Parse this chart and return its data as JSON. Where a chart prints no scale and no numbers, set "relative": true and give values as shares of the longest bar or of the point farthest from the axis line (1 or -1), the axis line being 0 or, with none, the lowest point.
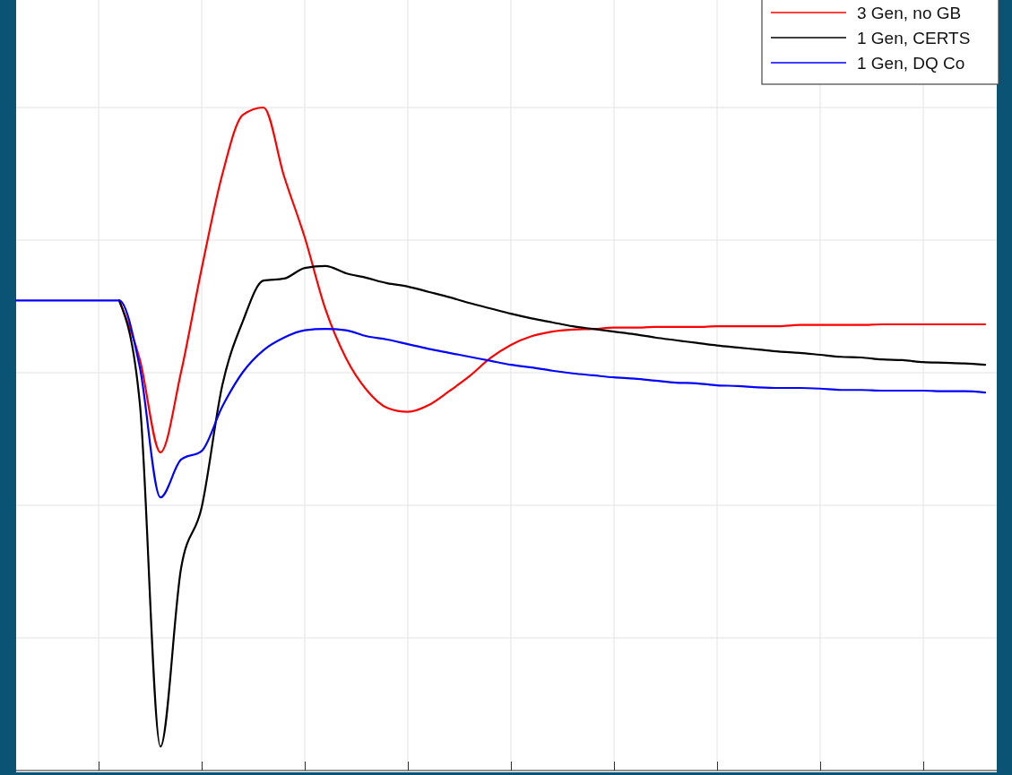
{
  "chart_data": {
    "type": "line",
    "relative": true,
    "grid": true,
    "legend": "top right",
    "categories": [
      null,
      null,
      null,
      null,
      null,
      null,
      null,
      null,
      null,
      null,
      null,
      null,
      null,
      null,
      null,
      null,
      null,
      null,
      null,
      null,
      null,
      null,
      null,
      null,
      null,
      null,
      null,
      null,
      null,
      null,
      null,
      null,
      null,
      null,
      null,
      null,
      null,
      null,
      null,
      null,
      null,
      null,
      null,
      null,
      null,
      null,
      null,
      null
    ],
    "series": [
      {
        "name": "3 Gen, no GB",
        "color": "#ff0000",
        "values": [
          null,
          null,
          null,
          null,
          null,
          0.709,
          0.62,
          0.48,
          0.601,
          0.757,
          0.899,
          0.989,
          1,
          0.896,
          0.804,
          0.696,
          0.622,
          0.574,
          0.547,
          0.541,
          0.551,
          0.572,
          0.595,
          0.622,
          0.642,
          0.655,
          0.662,
          0.665,
          0.666,
          0.668,
          0.668,
          0.669,
          0.669,
          0.669,
          0.67,
          0.67,
          0.67,
          0.67,
          0.672,
          0.672,
          0.672,
          0.672,
          0.673,
          0.673,
          0.673,
          0.673,
          0.673,
          0.673
        ]
      },
      {
        "name": "1 Gen, CERTS",
        "color": "#000000",
        "values": [
          null,
          null,
          null,
          null,
          null,
          0.709,
          0.554,
          0.036,
          0.305,
          0.397,
          0.581,
          0.678,
          0.739,
          0.742,
          0.758,
          0.761,
          0.75,
          0.743,
          0.735,
          0.73,
          0.722,
          0.714,
          0.705,
          0.697,
          0.689,
          0.682,
          0.676,
          0.67,
          0.666,
          0.662,
          0.658,
          0.653,
          0.649,
          0.645,
          0.641,
          0.638,
          0.635,
          0.632,
          0.63,
          0.627,
          0.624,
          0.623,
          0.62,
          0.619,
          0.616,
          0.615,
          0.614,
          0.612
        ]
      },
      {
        "name": "1 Gen, DQ Co",
        "color": "#0000ff",
        "values": [
          0.709,
          0.709,
          0.709,
          0.709,
          0.709,
          0.709,
          0.608,
          0.412,
          0.469,
          0.482,
          0.549,
          0.601,
          0.634,
          0.653,
          0.664,
          0.666,
          0.664,
          0.655,
          0.65,
          0.643,
          0.636,
          0.63,
          0.624,
          0.618,
          0.612,
          0.608,
          0.603,
          0.599,
          0.596,
          0.593,
          0.591,
          0.588,
          0.585,
          0.584,
          0.581,
          0.58,
          0.578,
          0.577,
          0.577,
          0.576,
          0.574,
          0.574,
          0.573,
          0.573,
          0.573,
          0.572,
          0.572,
          0.57
        ]
      }
    ]
  }
}
